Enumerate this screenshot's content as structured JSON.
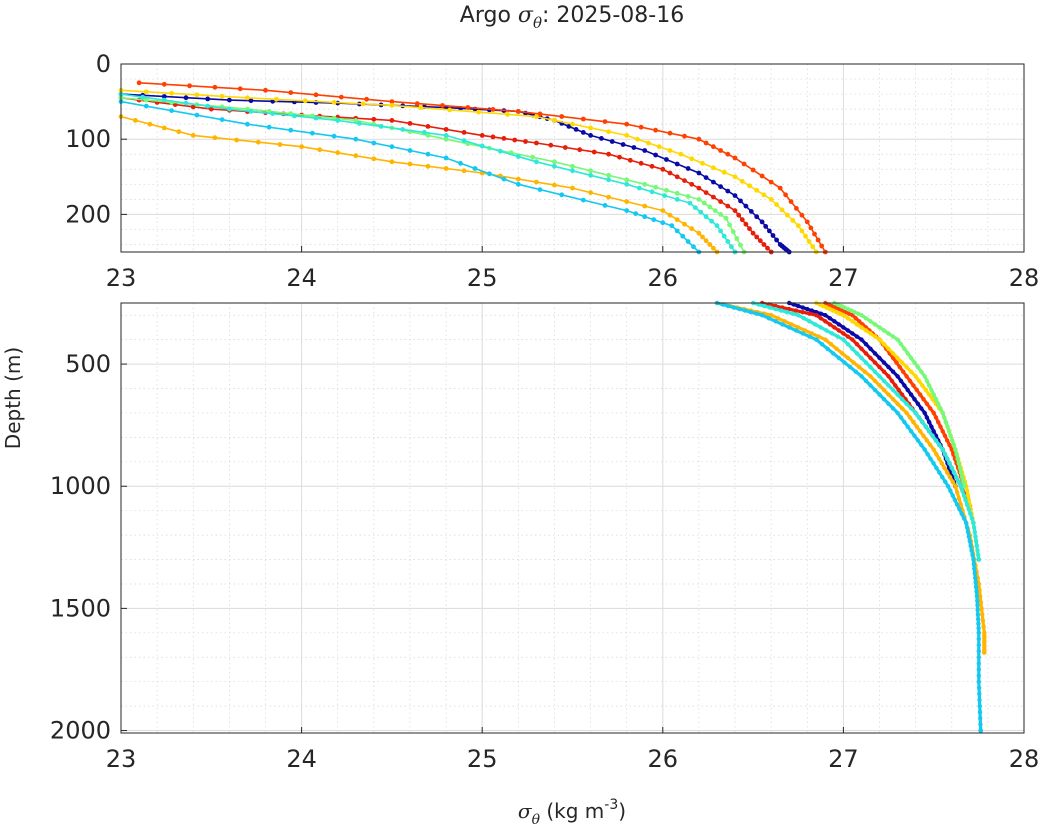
{
  "title": {
    "prefix": "Argo ",
    "symbol": "σ",
    "symbol_sub": "θ",
    "suffix": ": 2025-08-16"
  },
  "ylabel": "Depth (m)",
  "xlabel": {
    "symbol": "σ",
    "symbol_sub": "θ",
    "units_prefix": " (kg m",
    "units_sup": "-3",
    "units_suffix": ")"
  },
  "chart_data": [
    {
      "type": "scatter",
      "panel": "upper",
      "xlim": [
        23,
        28
      ],
      "ylim": [
        250,
        0
      ],
      "y_reversed": true,
      "grid": true,
      "minor_grid": true,
      "xticks": [
        "23",
        "24",
        "25",
        "26",
        "27",
        "28"
      ],
      "yticks": [
        "0",
        "100",
        "200"
      ],
      "xtick_values": [
        23,
        24,
        25,
        26,
        27,
        28
      ],
      "ytick_values": [
        0,
        100,
        200
      ],
      "series": [
        {
          "color": "#0a0aa8",
          "points": [
            [
              23.0,
              40
            ],
            [
              23.6,
              48
            ],
            [
              24.2,
              52
            ],
            [
              24.8,
              58
            ],
            [
              25.2,
              63
            ],
            [
              25.4,
              75
            ],
            [
              25.6,
              95
            ],
            [
              25.9,
              115
            ],
            [
              26.2,
              145
            ],
            [
              26.4,
              175
            ],
            [
              26.55,
              210
            ],
            [
              26.65,
              240
            ],
            [
              26.7,
              250
            ]
          ]
        },
        {
          "color": "#e61e0a",
          "points": [
            [
              23.0,
              45
            ],
            [
              23.5,
              60
            ],
            [
              24.0,
              68
            ],
            [
              24.5,
              75
            ],
            [
              25.0,
              95
            ],
            [
              25.3,
              105
            ],
            [
              25.7,
              120
            ],
            [
              26.0,
              140
            ],
            [
              26.2,
              165
            ],
            [
              26.4,
              195
            ],
            [
              26.5,
              225
            ],
            [
              26.6,
              250
            ]
          ]
        },
        {
          "color": "#ff4000",
          "points": [
            [
              23.1,
              25
            ],
            [
              23.8,
              35
            ],
            [
              24.5,
              50
            ],
            [
              25.2,
              63
            ],
            [
              25.8,
              80
            ],
            [
              26.2,
              100
            ],
            [
              26.4,
              125
            ],
            [
              26.65,
              165
            ],
            [
              26.8,
              210
            ],
            [
              26.9,
              250
            ]
          ]
        },
        {
          "color": "#ffb400",
          "points": [
            [
              23.0,
              70
            ],
            [
              23.4,
              95
            ],
            [
              24.0,
              110
            ],
            [
              24.5,
              130
            ],
            [
              25.0,
              145
            ],
            [
              25.5,
              165
            ],
            [
              26.0,
              195
            ],
            [
              26.2,
              225
            ],
            [
              26.3,
              250
            ]
          ]
        },
        {
          "color": "#ffd800",
          "points": [
            [
              23.0,
              35
            ],
            [
              23.7,
              45
            ],
            [
              24.5,
              55
            ],
            [
              25.3,
              70
            ],
            [
              25.8,
              95
            ],
            [
              26.1,
              120
            ],
            [
              26.4,
              150
            ],
            [
              26.6,
              180
            ],
            [
              26.75,
              215
            ],
            [
              26.85,
              250
            ]
          ]
        },
        {
          "color": "#78f878",
          "points": [
            [
              23.0,
              45
            ],
            [
              23.7,
              60
            ],
            [
              24.3,
              75
            ],
            [
              24.8,
              100
            ],
            [
              25.4,
              130
            ],
            [
              25.9,
              160
            ],
            [
              26.2,
              180
            ],
            [
              26.35,
              205
            ],
            [
              26.45,
              250
            ]
          ]
        },
        {
          "color": "#2ee8d8",
          "points": [
            [
              23.0,
              40
            ],
            [
              23.6,
              60
            ],
            [
              24.2,
              75
            ],
            [
              24.8,
              95
            ],
            [
              25.3,
              130
            ],
            [
              25.8,
              160
            ],
            [
              26.15,
              185
            ],
            [
              26.3,
              215
            ],
            [
              26.4,
              250
            ]
          ]
        },
        {
          "color": "#14c8f0",
          "points": [
            [
              23.0,
              50
            ],
            [
              23.7,
              80
            ],
            [
              24.3,
              100
            ],
            [
              24.8,
              125
            ],
            [
              25.2,
              160
            ],
            [
              25.8,
              195
            ],
            [
              26.05,
              215
            ],
            [
              26.2,
              250
            ]
          ]
        }
      ]
    },
    {
      "type": "scatter",
      "panel": "lower",
      "xlim": [
        23,
        28
      ],
      "ylim": [
        2010,
        250
      ],
      "y_reversed": true,
      "grid": true,
      "minor_grid": true,
      "xticks": [
        "23",
        "24",
        "25",
        "26",
        "27",
        "28"
      ],
      "yticks": [
        "500",
        "1000",
        "1500",
        "2000"
      ],
      "xtick_values": [
        23,
        24,
        25,
        26,
        27,
        28
      ],
      "ytick_values": [
        500,
        1000,
        1500,
        2000
      ],
      "series": [
        {
          "color": "#0a0aa8",
          "points": [
            [
              26.7,
              250
            ],
            [
              26.9,
              300
            ],
            [
              27.1,
              400
            ],
            [
              27.3,
              550
            ],
            [
              27.45,
              700
            ],
            [
              27.55,
              850
            ],
            [
              27.62,
              1000
            ]
          ]
        },
        {
          "color": "#e61e0a",
          "points": [
            [
              26.55,
              250
            ],
            [
              26.85,
              300
            ],
            [
              27.05,
              400
            ],
            [
              27.25,
              550
            ],
            [
              27.4,
              700
            ],
            [
              27.55,
              850
            ],
            [
              27.65,
              1000
            ],
            [
              27.7,
              1080
            ]
          ]
        },
        {
          "color": "#ff4000",
          "points": [
            [
              26.9,
              250
            ],
            [
              27.05,
              300
            ],
            [
              27.2,
              400
            ],
            [
              27.35,
              550
            ],
            [
              27.5,
              700
            ],
            [
              27.6,
              850
            ],
            [
              27.67,
              1000
            ]
          ]
        },
        {
          "color": "#ffb400",
          "points": [
            [
              26.3,
              250
            ],
            [
              26.6,
              300
            ],
            [
              26.9,
              400
            ],
            [
              27.15,
              550
            ],
            [
              27.35,
              700
            ],
            [
              27.5,
              850
            ],
            [
              27.62,
              1000
            ],
            [
              27.7,
              1200
            ],
            [
              27.75,
              1400
            ],
            [
              27.78,
              1600
            ],
            [
              27.78,
              1680
            ]
          ]
        },
        {
          "color": "#ffd800",
          "points": [
            [
              26.85,
              250
            ],
            [
              27.0,
              300
            ],
            [
              27.2,
              400
            ],
            [
              27.4,
              550
            ],
            [
              27.55,
              700
            ],
            [
              27.62,
              850
            ],
            [
              27.68,
              1000
            ],
            [
              27.72,
              1150
            ]
          ]
        },
        {
          "color": "#78f878",
          "points": [
            [
              26.95,
              250
            ],
            [
              27.1,
              300
            ],
            [
              27.3,
              400
            ],
            [
              27.45,
              550
            ],
            [
              27.55,
              700
            ],
            [
              27.62,
              850
            ],
            [
              27.67,
              1000
            ]
          ]
        },
        {
          "color": "#2ee8d8",
          "points": [
            [
              26.5,
              250
            ],
            [
              26.75,
              300
            ],
            [
              27.0,
              400
            ],
            [
              27.2,
              550
            ],
            [
              27.4,
              700
            ],
            [
              27.55,
              850
            ],
            [
              27.65,
              1000
            ],
            [
              27.72,
              1150
            ],
            [
              27.75,
              1300
            ]
          ]
        },
        {
          "color": "#14c8f0",
          "points": [
            [
              26.3,
              250
            ],
            [
              26.55,
              300
            ],
            [
              26.85,
              400
            ],
            [
              27.1,
              550
            ],
            [
              27.3,
              700
            ],
            [
              27.45,
              850
            ],
            [
              27.58,
              1000
            ],
            [
              27.68,
              1150
            ],
            [
              27.72,
              1300
            ],
            [
              27.74,
              1450
            ],
            [
              27.75,
              1600
            ],
            [
              27.75,
              1800
            ],
            [
              27.76,
              2000
            ]
          ]
        }
      ]
    }
  ]
}
